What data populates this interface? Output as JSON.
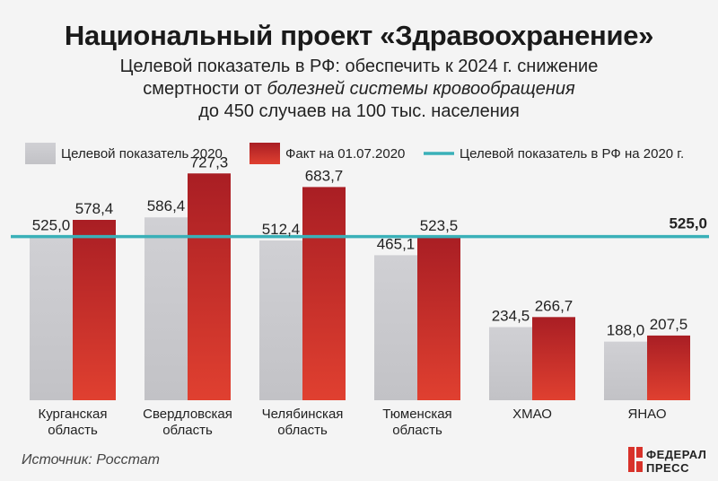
{
  "header": {
    "title": "Национальный проект «Здравоохранение»",
    "subtitle_line1": "Целевой показатель в РФ: обеспечить к 2024 г. снижение",
    "subtitle_line2_plain": "смертности от ",
    "subtitle_line2_italic": "болезней системы кровообращения",
    "subtitle_line3": "до 450 случаев на 100 тыс. населения"
  },
  "footer": {
    "source": "Источник: Росстат",
    "logo_line1": "ФЕДЕРАЛ",
    "logo_line2": "ПРЕСС"
  },
  "colors": {
    "target": "#c8c8cc",
    "fact_top": "#a91e24",
    "fact_bottom": "#e04030",
    "reference_line": "#3ab0b8"
  },
  "chart_data": {
    "type": "bar",
    "categories": [
      [
        "Курганская",
        "область"
      ],
      [
        "Свердловская",
        "область"
      ],
      [
        "Челябинская",
        "область"
      ],
      [
        "Тюменская",
        "область"
      ],
      [
        "ХМАО"
      ],
      [
        "ЯНАО"
      ]
    ],
    "series": [
      {
        "name": "Целевой показатель 2020",
        "values": [
          525.0,
          586.4,
          512.4,
          465.1,
          234.5,
          188.0
        ],
        "labels": [
          "525,0",
          "586,4",
          "512,4",
          "465,1",
          "234,5",
          "188,0"
        ]
      },
      {
        "name": "Факт на 01.07.2020",
        "values": [
          578.4,
          727.3,
          683.7,
          523.5,
          266.7,
          207.5
        ],
        "labels": [
          "578,4",
          "727,3",
          "683,7",
          "523,5",
          "266,7",
          "207,5"
        ]
      }
    ],
    "reference_line": {
      "name": "Целевой показатель в РФ на 2020 г.",
      "value": 525.0,
      "label": "525,0"
    },
    "ylim": [
      0,
      800
    ],
    "grid": false,
    "legend_position": "top"
  }
}
